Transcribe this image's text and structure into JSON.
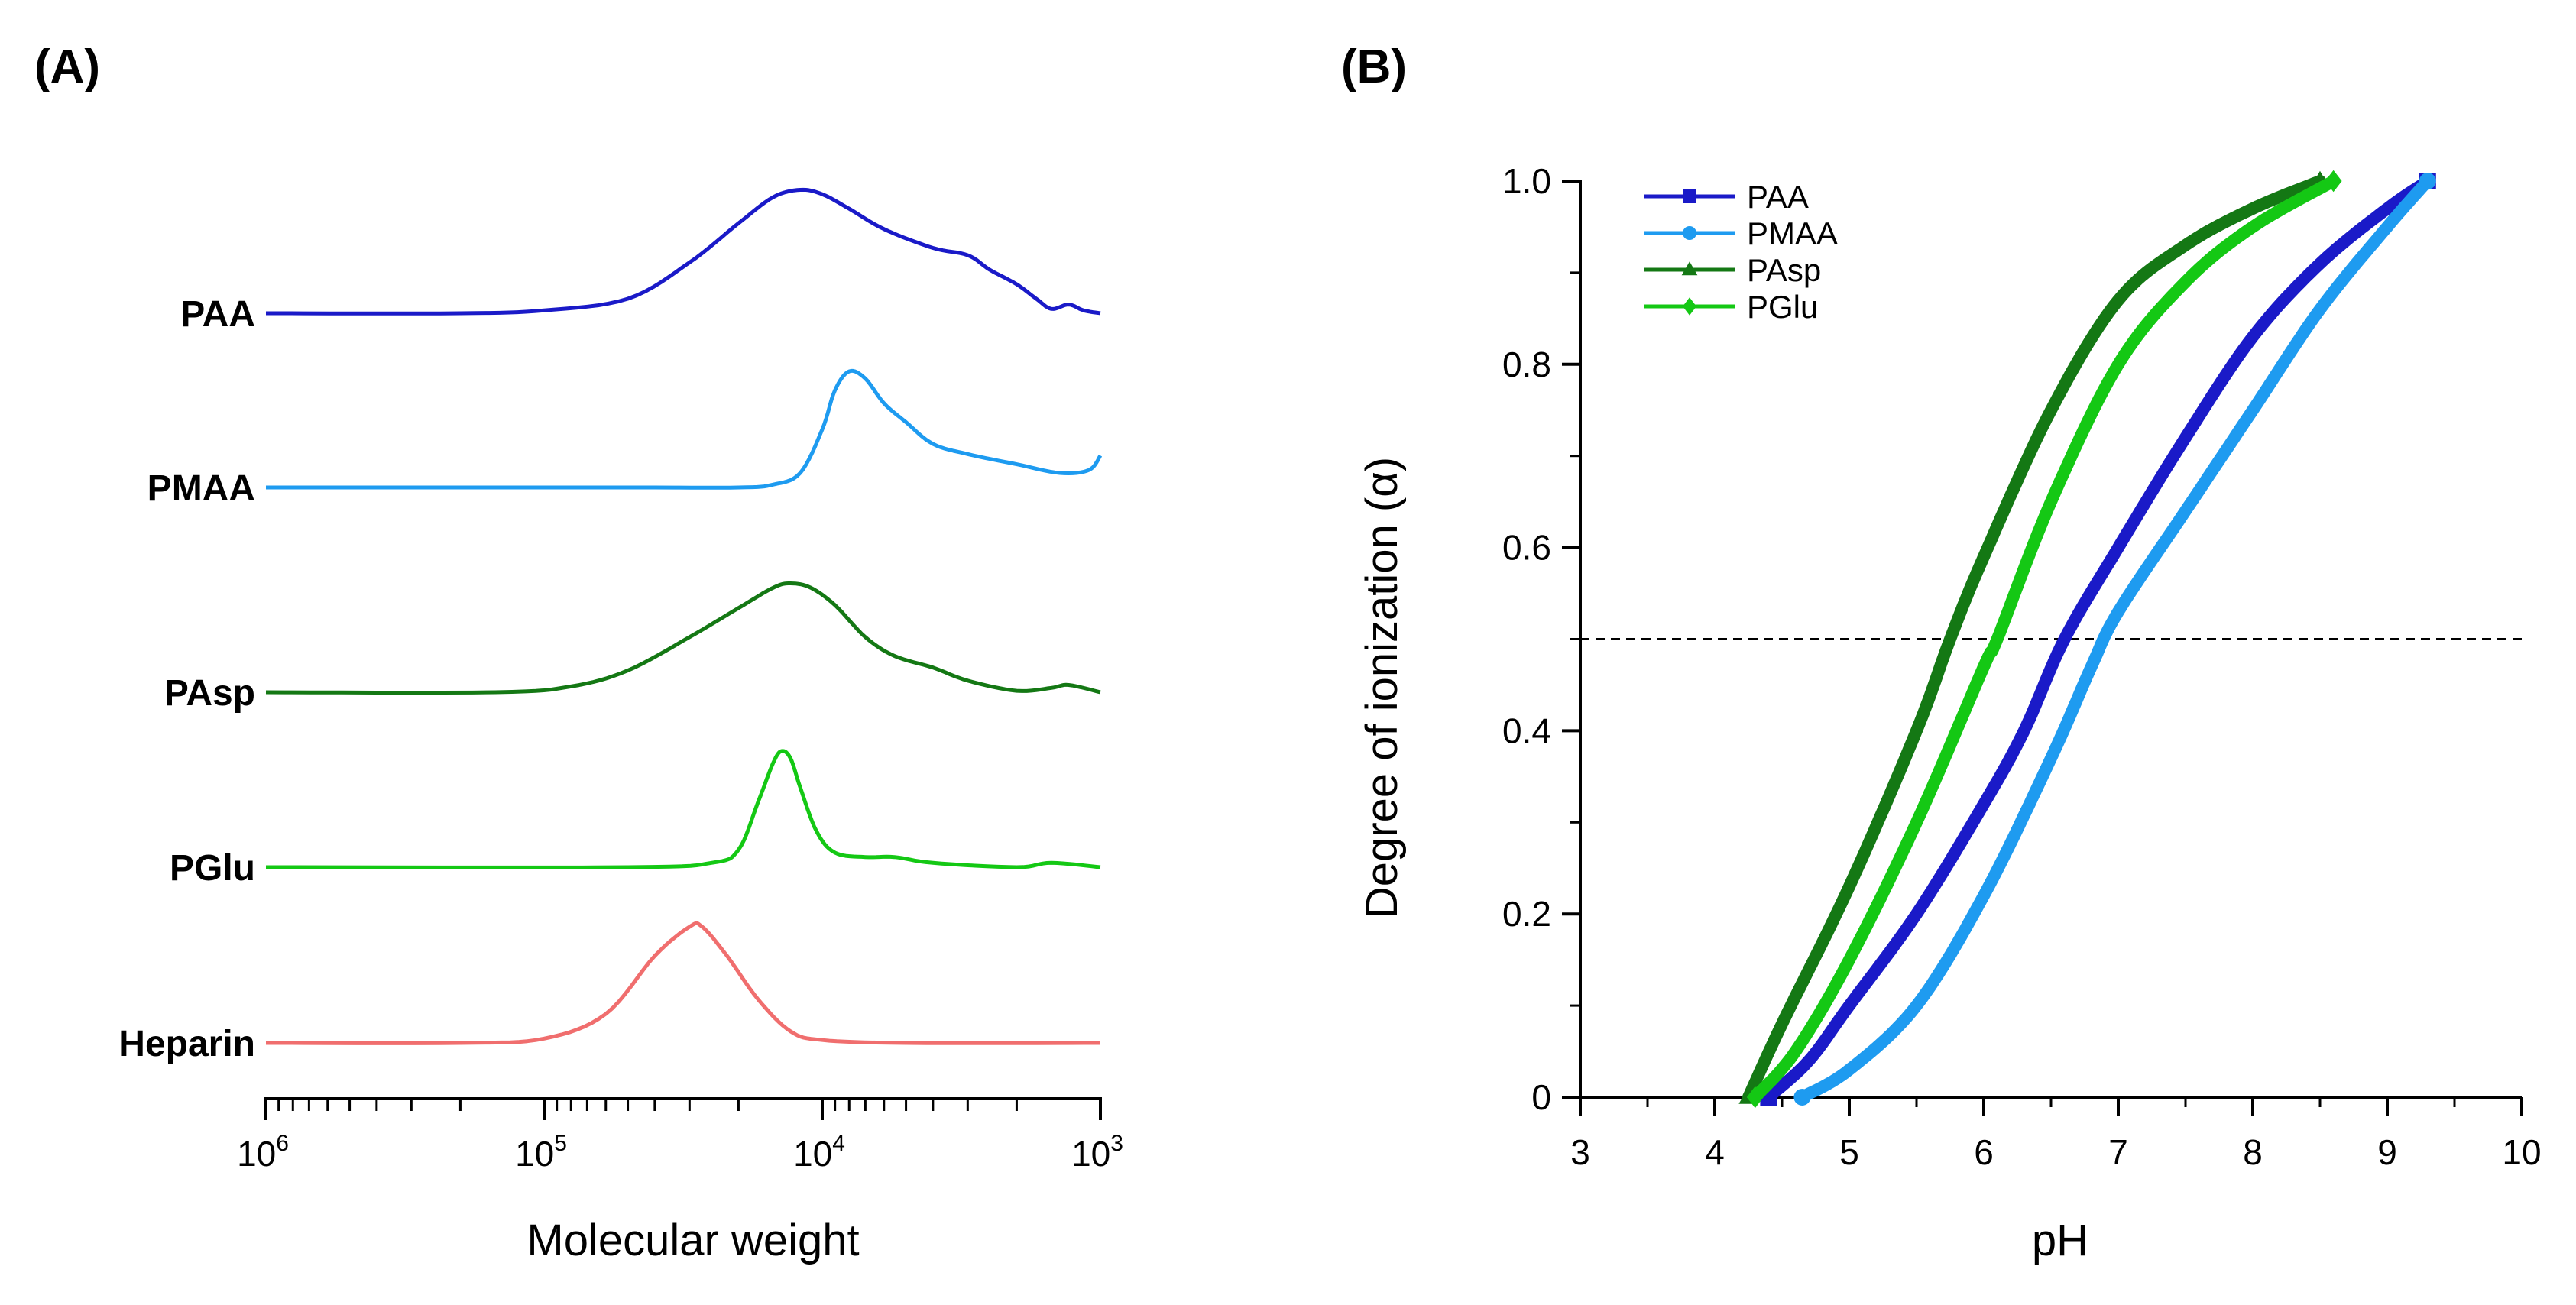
{
  "chart_data": [
    {
      "panel": "(A)",
      "type": "line",
      "xscale": "log",
      "x_reversed": true,
      "xlim": [
        1000000,
        1000
      ],
      "xlabel": "Molecular weight",
      "ylabel": "",
      "x_ticks": [
        {
          "value": 1000000,
          "base": "10",
          "exp": "6"
        },
        {
          "value": 100000,
          "base": "10",
          "exp": "5"
        },
        {
          "value": 10000,
          "base": "10",
          "exp": "4"
        },
        {
          "value": 1000,
          "base": "10",
          "exp": "3"
        }
      ],
      "series": [
        {
          "name": "PAA",
          "color": "#1a1ac8",
          "points": [
            [
              1000000,
              0
            ],
            [
              200000,
              0
            ],
            [
              100000,
              0.02
            ],
            [
              50000,
              0.1
            ],
            [
              30000,
              0.35
            ],
            [
              20000,
              0.62
            ],
            [
              15000,
              0.8
            ],
            [
              12000,
              0.85
            ],
            [
              10000,
              0.82
            ],
            [
              8000,
              0.72
            ],
            [
              6000,
              0.58
            ],
            [
              4000,
              0.45
            ],
            [
              3000,
              0.4
            ],
            [
              2500,
              0.3
            ],
            [
              2000,
              0.2
            ],
            [
              1700,
              0.1
            ],
            [
              1500,
              0.03
            ],
            [
              1300,
              0.06
            ],
            [
              1150,
              0.02
            ],
            [
              1000,
              0.0
            ]
          ]
        },
        {
          "name": "PMAA",
          "color": "#1e9bf0",
          "points": [
            [
              1000000,
              0
            ],
            [
              50000,
              0
            ],
            [
              20000,
              0
            ],
            [
              15000,
              0.02
            ],
            [
              12000,
              0.1
            ],
            [
              10000,
              0.4
            ],
            [
              9000,
              0.67
            ],
            [
              8000,
              0.8
            ],
            [
              7000,
              0.75
            ],
            [
              6000,
              0.58
            ],
            [
              5000,
              0.45
            ],
            [
              4000,
              0.3
            ],
            [
              3000,
              0.23
            ],
            [
              2000,
              0.16
            ],
            [
              1400,
              0.1
            ],
            [
              1100,
              0.12
            ],
            [
              1000,
              0.22
            ]
          ]
        },
        {
          "name": "PAsp",
          "color": "#147814",
          "points": [
            [
              1000000,
              0
            ],
            [
              150000,
              0
            ],
            [
              80000,
              0.04
            ],
            [
              50000,
              0.15
            ],
            [
              30000,
              0.38
            ],
            [
              20000,
              0.58
            ],
            [
              15000,
              0.72
            ],
            [
              13000,
              0.75
            ],
            [
              11000,
              0.72
            ],
            [
              9000,
              0.6
            ],
            [
              7000,
              0.38
            ],
            [
              5500,
              0.25
            ],
            [
              4000,
              0.17
            ],
            [
              3000,
              0.08
            ],
            [
              2000,
              0.01
            ],
            [
              1500,
              0.03
            ],
            [
              1300,
              0.05
            ],
            [
              1000,
              0.0
            ]
          ]
        },
        {
          "name": "PGlu",
          "color": "#14c814",
          "points": [
            [
              1000000,
              0
            ],
            [
              50000,
              0
            ],
            [
              25000,
              0.03
            ],
            [
              20000,
              0.12
            ],
            [
              17000,
              0.45
            ],
            [
              15000,
              0.72
            ],
            [
              14000,
              0.8
            ],
            [
              13000,
              0.75
            ],
            [
              12000,
              0.55
            ],
            [
              10500,
              0.25
            ],
            [
              9000,
              0.1
            ],
            [
              7000,
              0.07
            ],
            [
              5500,
              0.07
            ],
            [
              4000,
              0.03
            ],
            [
              2000,
              0.0
            ],
            [
              1500,
              0.03
            ],
            [
              1000,
              0.0
            ]
          ]
        },
        {
          "name": "Heparin",
          "color": "#f06e6e",
          "points": [
            [
              1000000,
              0
            ],
            [
              200000,
              0
            ],
            [
              100000,
              0.03
            ],
            [
              60000,
              0.2
            ],
            [
              40000,
              0.6
            ],
            [
              30000,
              0.8
            ],
            [
              27000,
              0.8
            ],
            [
              22000,
              0.6
            ],
            [
              17000,
              0.3
            ],
            [
              13000,
              0.08
            ],
            [
              10000,
              0.02
            ],
            [
              5000,
              0.0
            ],
            [
              1000,
              0.0
            ]
          ]
        }
      ]
    },
    {
      "panel": "(B)",
      "type": "line",
      "xlabel": "pH",
      "ylabel": "Degree of ionization (α)",
      "xlim": [
        3,
        10
      ],
      "ylim": [
        0,
        1.0
      ],
      "x_ticks": [
        3,
        4,
        5,
        6,
        7,
        8,
        9,
        10
      ],
      "y_ticks": [
        "0",
        "0.2",
        "0.4",
        "0.6",
        "0.8",
        "1.0"
      ],
      "reference_line": {
        "y": 0.5,
        "style": "dashed"
      },
      "legend": "top-left",
      "series": [
        {
          "name": "PAA",
          "color": "#1a1ac8",
          "marker": "square",
          "points": [
            [
              4.4,
              0
            ],
            [
              4.7,
              0.04
            ],
            [
              5,
              0.1
            ],
            [
              5.5,
              0.2
            ],
            [
              6,
              0.32
            ],
            [
              6.3,
              0.4
            ],
            [
              6.6,
              0.5
            ],
            [
              7,
              0.6
            ],
            [
              7.5,
              0.72
            ],
            [
              8,
              0.83
            ],
            [
              8.5,
              0.91
            ],
            [
              9,
              0.97
            ],
            [
              9.3,
              1.0
            ]
          ]
        },
        {
          "name": "PMAA",
          "color": "#1e9bf0",
          "marker": "circle",
          "points": [
            [
              4.65,
              0
            ],
            [
              5,
              0.03
            ],
            [
              5.5,
              0.1
            ],
            [
              6,
              0.22
            ],
            [
              6.5,
              0.37
            ],
            [
              6.8,
              0.47
            ],
            [
              7,
              0.53
            ],
            [
              7.5,
              0.64
            ],
            [
              8,
              0.75
            ],
            [
              8.5,
              0.86
            ],
            [
              9,
              0.95
            ],
            [
              9.3,
              1.0
            ]
          ]
        },
        {
          "name": "PAsp",
          "color": "#147814",
          "marker": "triangle",
          "points": [
            [
              4.25,
              0
            ],
            [
              4.5,
              0.08
            ],
            [
              5,
              0.23
            ],
            [
              5.5,
              0.4
            ],
            [
              5.75,
              0.5
            ],
            [
              6,
              0.59
            ],
            [
              6.5,
              0.75
            ],
            [
              7,
              0.87
            ],
            [
              7.5,
              0.93
            ],
            [
              8,
              0.97
            ],
            [
              8.5,
              1.0
            ]
          ]
        },
        {
          "name": "PGlu",
          "color": "#14c814",
          "marker": "diamond",
          "points": [
            [
              4.3,
              0
            ],
            [
              4.6,
              0.05
            ],
            [
              5,
              0.15
            ],
            [
              5.5,
              0.3
            ],
            [
              6,
              0.47
            ],
            [
              6.1,
              0.5
            ],
            [
              6.5,
              0.65
            ],
            [
              7,
              0.8
            ],
            [
              7.5,
              0.89
            ],
            [
              8,
              0.95
            ],
            [
              8.6,
              1.0
            ]
          ]
        }
      ]
    }
  ]
}
